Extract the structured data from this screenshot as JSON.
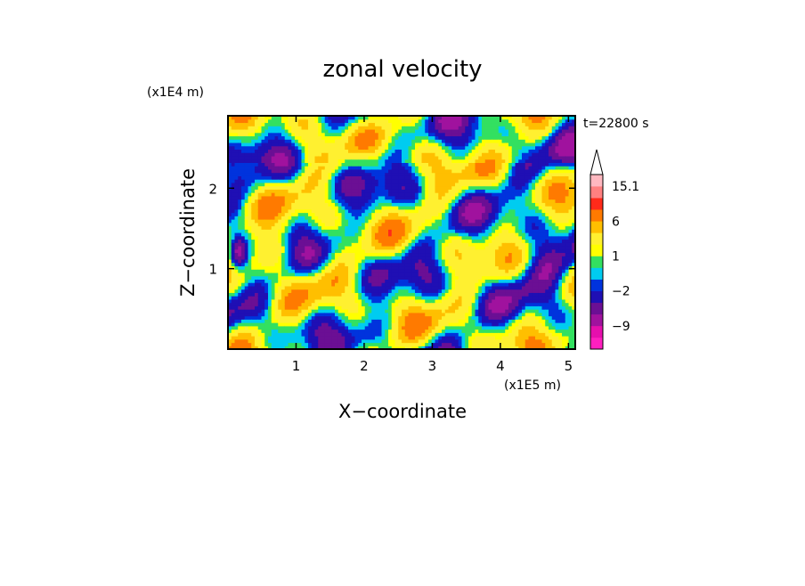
{
  "chart_data": {
    "type": "heatmap",
    "title": "zonal velocity",
    "xlabel": "X−coordinate",
    "ylabel": "Z−coordinate",
    "x_unit": "(x1E5 m)",
    "y_unit": "(x1E4 m)",
    "time_label": "t=22800 s",
    "xlim": [
      0,
      5.1
    ],
    "ylim": [
      0,
      2.9
    ],
    "x_ticks": [
      "1",
      "2",
      "3",
      "4",
      "5"
    ],
    "y_ticks": [
      "1",
      "2"
    ],
    "grid": false,
    "colorbar": {
      "position": "right",
      "tick_labels": [
        "15.1",
        "6",
        "1",
        "−2",
        "−9"
      ],
      "levels": [
        -15,
        -12,
        -9,
        -6,
        -4,
        -2,
        -1,
        0,
        1,
        2,
        4,
        6,
        9,
        12,
        15.1
      ],
      "colors": [
        "#ff1fbf",
        "#e60fad",
        "#a0129e",
        "#6b0f94",
        "#1f0fb4",
        "#0033dd",
        "#00ccf0",
        "#33e060",
        "#ffff00",
        "#fff030",
        "#ffbf00",
        "#ff7a00",
        "#ff2a1a",
        "#ff8080",
        "#ffb8c0"
      ],
      "extend_max": true
    }
  }
}
